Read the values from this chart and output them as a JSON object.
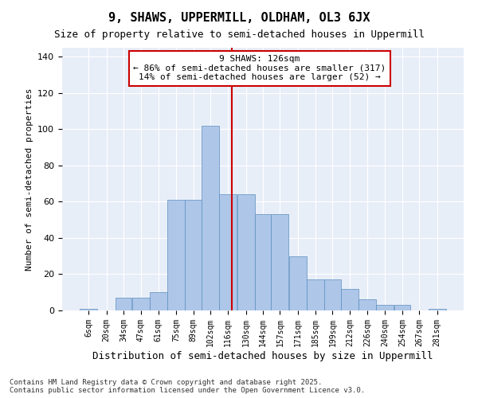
{
  "title": "9, SHAWS, UPPERMILL, OLDHAM, OL3 6JX",
  "subtitle": "Size of property relative to semi-detached houses in Uppermill",
  "xlabel": "Distribution of semi-detached houses by size in Uppermill",
  "ylabel": "Number of semi-detached properties",
  "footnote": "Contains HM Land Registry data © Crown copyright and database right 2025.\nContains public sector information licensed under the Open Government Licence v3.0.",
  "categories": [
    "6sqm",
    "20sqm",
    "34sqm",
    "47sqm",
    "61sqm",
    "75sqm",
    "89sqm",
    "102sqm",
    "116sqm",
    "130sqm",
    "144sqm",
    "157sqm",
    "171sqm",
    "185sqm",
    "199sqm",
    "212sqm",
    "226sqm",
    "240sqm",
    "254sqm",
    "267sqm",
    "281sqm"
  ],
  "bar_heights": [
    1,
    0,
    7,
    7,
    10,
    61,
    61,
    102,
    64,
    64,
    53,
    53,
    30,
    17,
    17,
    12,
    6,
    3,
    3,
    0,
    1
  ],
  "bin_edges": [
    6,
    20,
    34,
    47,
    61,
    75,
    89,
    102,
    116,
    130,
    144,
    157,
    171,
    185,
    199,
    212,
    226,
    240,
    254,
    267,
    281,
    295
  ],
  "bar_color": "#aec6e8",
  "bar_edge_color": "#5a8fc0",
  "background_color": "#e8eef8",
  "vline_x": 126,
  "vline_color": "#cc0000",
  "annotation_text": "9 SHAWS: 126sqm\n← 86% of semi-detached houses are smaller (317)\n14% of semi-detached houses are larger (52) →",
  "annotation_box_color": "#cc0000",
  "annotation_fontsize": 8,
  "ylim": [
    0,
    145
  ],
  "title_fontsize": 11,
  "subtitle_fontsize": 9,
  "xlabel_fontsize": 9,
  "ylabel_fontsize": 8,
  "tick_fontsize": 7,
  "footnote_fontsize": 6.5
}
